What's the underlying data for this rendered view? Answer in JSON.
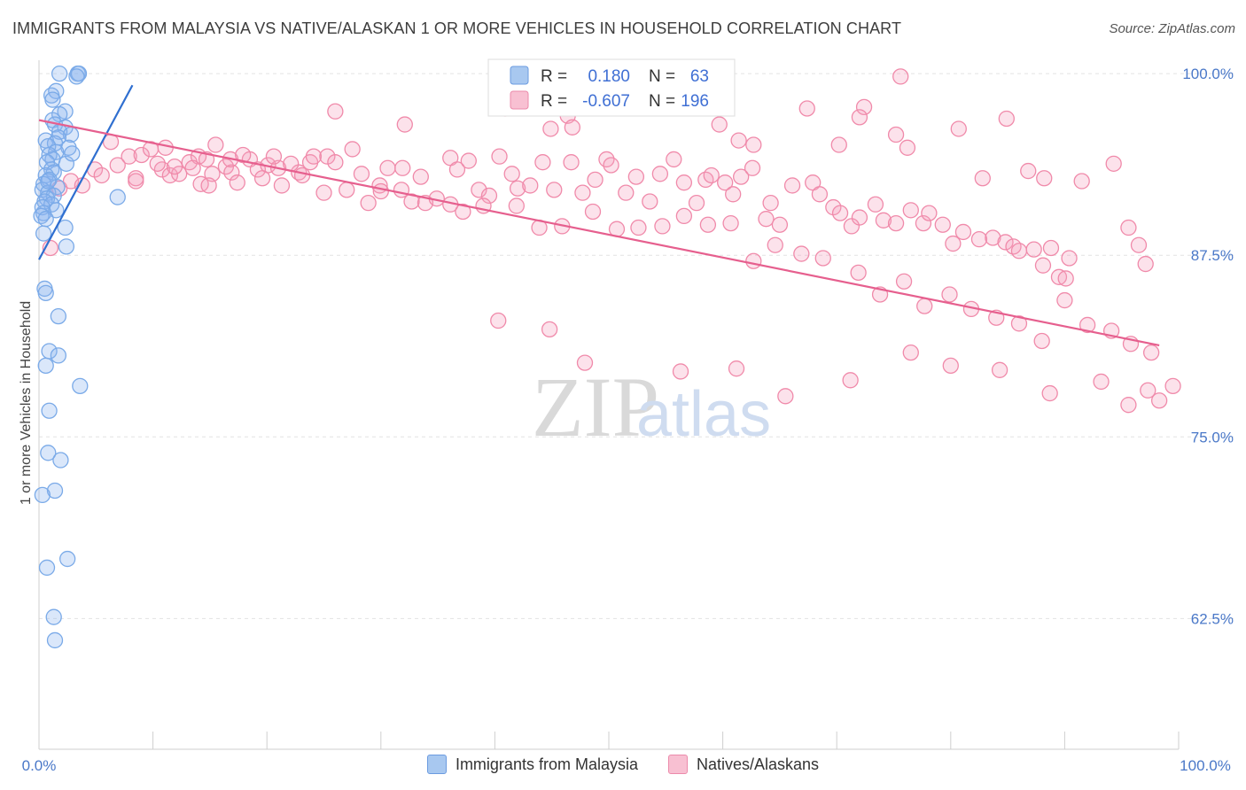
{
  "title": "IMMIGRANTS FROM MALAYSIA VS NATIVE/ALASKAN 1 OR MORE VEHICLES IN HOUSEHOLD CORRELATION CHART",
  "source": "Source: ZipAtlas.com",
  "watermark": {
    "zip": "ZIP",
    "atlas": "atlas"
  },
  "chart_data": {
    "type": "scatter",
    "title": "IMMIGRANTS FROM MALAYSIA VS NATIVE/ALASKAN 1 OR MORE VEHICLES IN HOUSEHOLD CORRELATION CHART",
    "xlabel": "",
    "ylabel": "1 or more Vehicles in Household",
    "xlim": [
      0,
      100
    ],
    "ylim": [
      53.5,
      100.8
    ],
    "x_tick_labels": [
      "0.0%",
      "100.0%"
    ],
    "y_ticks": [
      62.5,
      75.0,
      87.5,
      100.0
    ],
    "y_tick_labels": [
      "62.5%",
      "75.0%",
      "87.5%",
      "100.0%"
    ],
    "grid": true,
    "legend": {
      "position": "top-center",
      "entries": [
        {
          "r_label": "R =",
          "r_value": "0.180",
          "n_label": "N =",
          "n_value": "63"
        },
        {
          "r_label": "R =",
          "r_value": "-0.607",
          "n_label": "N =",
          "n_value": "196"
        }
      ]
    },
    "series": [
      {
        "name": "Immigrants from Malaysia",
        "color": "#7aaae8",
        "trend": {
          "x": [
            0,
            8.2
          ],
          "y": [
            87.2,
            99.2
          ],
          "color": "#2f6fd0"
        },
        "points": [
          [
            1.8,
            100
          ],
          [
            3.4,
            100
          ],
          [
            3.5,
            100
          ],
          [
            3.3,
            99.8
          ],
          [
            1.5,
            98.8
          ],
          [
            1.1,
            98.5
          ],
          [
            1.2,
            98.2
          ],
          [
            2.3,
            97.4
          ],
          [
            1.8,
            97.2
          ],
          [
            1.2,
            96.8
          ],
          [
            1.4,
            96.5
          ],
          [
            2.3,
            96.3
          ],
          [
            1.8,
            96
          ],
          [
            2.8,
            95.8
          ],
          [
            1.7,
            95.6
          ],
          [
            0.6,
            95.4
          ],
          [
            1.4,
            95.2
          ],
          [
            0.8,
            95
          ],
          [
            2.6,
            94.9
          ],
          [
            1.5,
            94.6
          ],
          [
            0.9,
            94.4
          ],
          [
            1.2,
            94.1
          ],
          [
            0.7,
            93.9
          ],
          [
            2.4,
            93.8
          ],
          [
            1.1,
            93.4
          ],
          [
            1.3,
            93.2
          ],
          [
            0.6,
            93
          ],
          [
            0.9,
            92.7
          ],
          [
            0.4,
            92.4
          ],
          [
            1.6,
            92.2
          ],
          [
            0.3,
            92
          ],
          [
            0.8,
            91.8
          ],
          [
            1.3,
            91.6
          ],
          [
            0.7,
            91.4
          ],
          [
            0.5,
            91.2
          ],
          [
            6.9,
            91.5
          ],
          [
            1.1,
            91.0
          ],
          [
            0.3,
            90.8
          ],
          [
            1.5,
            90.6
          ],
          [
            0.4,
            90.4
          ],
          [
            0.2,
            90.2
          ],
          [
            0.6,
            90
          ],
          [
            2.3,
            89.4
          ],
          [
            0.4,
            89
          ],
          [
            2.4,
            88.1
          ],
          [
            0.5,
            85.2
          ],
          [
            0.6,
            84.9
          ],
          [
            1.7,
            83.3
          ],
          [
            0.9,
            80.9
          ],
          [
            1.7,
            80.6
          ],
          [
            0.6,
            79.9
          ],
          [
            3.6,
            78.5
          ],
          [
            0.9,
            76.8
          ],
          [
            0.8,
            73.9
          ],
          [
            1.9,
            73.4
          ],
          [
            1.4,
            71.3
          ],
          [
            0.3,
            71
          ],
          [
            2.5,
            66.6
          ],
          [
            0.7,
            66
          ],
          [
            1.3,
            62.6
          ],
          [
            1.4,
            61
          ],
          [
            0.8,
            92.6
          ],
          [
            2.9,
            94.5
          ]
        ]
      },
      {
        "name": "Natives/Alaskans",
        "color": "#f08aaa",
        "trend": {
          "x": [
            0,
            98.3
          ],
          "y": [
            96.8,
            81.3
          ],
          "color": "#e65f8e"
        },
        "points": [
          [
            1.0,
            88.0
          ],
          [
            1.8,
            92.1
          ],
          [
            2.8,
            92.6
          ],
          [
            3.8,
            92.3
          ],
          [
            4.9,
            93.4
          ],
          [
            5.5,
            93.0
          ],
          [
            6.3,
            95.3
          ],
          [
            6.9,
            93.7
          ],
          [
            7.9,
            94.3
          ],
          [
            8.5,
            92.8
          ],
          [
            9.0,
            94.4
          ],
          [
            9.8,
            94.8
          ],
          [
            11.1,
            94.9
          ],
          [
            10.8,
            93.4
          ],
          [
            11.5,
            93.0
          ],
          [
            12.3,
            93.1
          ],
          [
            13.2,
            93.9
          ],
          [
            14.0,
            94.3
          ],
          [
            14.7,
            94.1
          ],
          [
            15.5,
            95.1
          ],
          [
            14.2,
            92.4
          ],
          [
            15.2,
            93.1
          ],
          [
            16.4,
            93.6
          ],
          [
            16.9,
            93.2
          ],
          [
            17.4,
            92.5
          ],
          [
            18.5,
            94.1
          ],
          [
            19.2,
            93.4
          ],
          [
            20.1,
            93.7
          ],
          [
            21.0,
            93.5
          ],
          [
            21.3,
            92.3
          ],
          [
            22.8,
            93.2
          ],
          [
            23.8,
            93.9
          ],
          [
            24.1,
            94.3
          ],
          [
            25.3,
            94.3
          ],
          [
            26.0,
            93.9
          ],
          [
            27.5,
            94.8
          ],
          [
            28.3,
            93.1
          ],
          [
            29.9,
            92.3
          ],
          [
            30.6,
            93.5
          ],
          [
            31.9,
            93.5
          ],
          [
            32.7,
            91.2
          ],
          [
            33.9,
            91.1
          ],
          [
            36.1,
            94.2
          ],
          [
            36.7,
            93.4
          ],
          [
            37.7,
            94.0
          ],
          [
            36.1,
            91.0
          ],
          [
            38.6,
            92.0
          ],
          [
            39.5,
            91.6
          ],
          [
            40.4,
            94.3
          ],
          [
            41.5,
            93.1
          ],
          [
            42.0,
            92.1
          ],
          [
            43.1,
            92.3
          ],
          [
            44.2,
            93.9
          ],
          [
            45.2,
            92.0
          ],
          [
            46.7,
            93.9
          ],
          [
            47.7,
            91.8
          ],
          [
            48.8,
            92.7
          ],
          [
            49.8,
            94.1
          ],
          [
            50.2,
            93.7
          ],
          [
            51.5,
            91.8
          ],
          [
            52.4,
            92.9
          ],
          [
            53.6,
            91.2
          ],
          [
            54.5,
            93.1
          ],
          [
            55.7,
            94.1
          ],
          [
            56.6,
            92.5
          ],
          [
            57.7,
            91.1
          ],
          [
            58.5,
            92.7
          ],
          [
            59.0,
            93.0
          ],
          [
            60.2,
            92.5
          ],
          [
            60.9,
            91.7
          ],
          [
            61.6,
            92.9
          ],
          [
            62.6,
            93.5
          ],
          [
            63.8,
            90.0
          ],
          [
            64.2,
            91.1
          ],
          [
            65.0,
            89.6
          ],
          [
            66.1,
            92.3
          ],
          [
            67.9,
            92.5
          ],
          [
            68.5,
            91.7
          ],
          [
            69.7,
            90.8
          ],
          [
            70.3,
            90.4
          ],
          [
            71.3,
            89.5
          ],
          [
            72.0,
            90.1
          ],
          [
            73.4,
            91.0
          ],
          [
            74.1,
            89.9
          ],
          [
            75.2,
            89.7
          ],
          [
            76.5,
            90.6
          ],
          [
            77.6,
            89.7
          ],
          [
            78.1,
            90.4
          ],
          [
            79.3,
            89.6
          ],
          [
            80.2,
            88.3
          ],
          [
            81.1,
            89.1
          ],
          [
            82.5,
            88.6
          ],
          [
            83.7,
            88.7
          ],
          [
            84.8,
            88.4
          ],
          [
            85.5,
            88.1
          ],
          [
            86.0,
            87.8
          ],
          [
            87.3,
            87.9
          ],
          [
            88.1,
            86.8
          ],
          [
            89.5,
            86.0
          ],
          [
            90.1,
            85.9
          ],
          [
            26.0,
            97.4
          ],
          [
            32.1,
            96.5
          ],
          [
            40.9,
            97.6
          ],
          [
            44.9,
            96.2
          ],
          [
            46.4,
            97.1
          ],
          [
            46.8,
            96.3
          ],
          [
            54.5,
            97.7
          ],
          [
            59.7,
            96.5
          ],
          [
            58.7,
            98.5
          ],
          [
            61.4,
            95.4
          ],
          [
            62.7,
            95.1
          ],
          [
            67.4,
            97.6
          ],
          [
            70.2,
            95.1
          ],
          [
            72.4,
            97.7
          ],
          [
            72.0,
            97.0
          ],
          [
            75.6,
            99.8
          ],
          [
            75.2,
            95.8
          ],
          [
            76.2,
            94.9
          ],
          [
            80.7,
            96.2
          ],
          [
            82.8,
            92.8
          ],
          [
            84.9,
            96.9
          ],
          [
            86.8,
            93.3
          ],
          [
            88.2,
            92.8
          ],
          [
            88.8,
            88.0
          ],
          [
            90.4,
            87.3
          ],
          [
            91.5,
            92.6
          ],
          [
            94.3,
            93.8
          ],
          [
            95.6,
            89.4
          ],
          [
            96.5,
            88.2
          ],
          [
            97.1,
            86.9
          ],
          [
            8.5,
            92.6
          ],
          [
            10.4,
            93.8
          ],
          [
            11.9,
            93.6
          ],
          [
            13.5,
            93.5
          ],
          [
            14.9,
            92.3
          ],
          [
            16.8,
            94.1
          ],
          [
            17.9,
            94.4
          ],
          [
            19.6,
            92.8
          ],
          [
            20.6,
            94.3
          ],
          [
            22.1,
            93.8
          ],
          [
            23.1,
            93.0
          ],
          [
            25.0,
            91.8
          ],
          [
            27.0,
            92.0
          ],
          [
            28.9,
            91.1
          ],
          [
            30.0,
            91.9
          ],
          [
            31.8,
            92.0
          ],
          [
            33.5,
            92.9
          ],
          [
            34.9,
            91.4
          ],
          [
            37.2,
            90.5
          ],
          [
            39.0,
            90.9
          ],
          [
            41.9,
            90.9
          ],
          [
            43.9,
            89.4
          ],
          [
            45.9,
            89.5
          ],
          [
            48.6,
            90.5
          ],
          [
            50.7,
            89.3
          ],
          [
            52.6,
            89.4
          ],
          [
            54.7,
            89.5
          ],
          [
            56.6,
            90.2
          ],
          [
            58.7,
            89.6
          ],
          [
            60.7,
            89.7
          ],
          [
            62.7,
            87.1
          ],
          [
            64.6,
            88.2
          ],
          [
            66.9,
            87.6
          ],
          [
            68.8,
            87.3
          ],
          [
            71.9,
            86.3
          ],
          [
            73.8,
            84.8
          ],
          [
            75.9,
            85.7
          ],
          [
            77.7,
            84.0
          ],
          [
            79.9,
            84.8
          ],
          [
            81.8,
            83.8
          ],
          [
            84.0,
            83.2
          ],
          [
            86.0,
            82.8
          ],
          [
            88.0,
            81.6
          ],
          [
            90.0,
            84.4
          ],
          [
            92.0,
            82.7
          ],
          [
            94.1,
            82.3
          ],
          [
            95.8,
            81.4
          ],
          [
            97.6,
            80.8
          ],
          [
            40.3,
            83.0
          ],
          [
            44.8,
            82.4
          ],
          [
            47.9,
            80.1
          ],
          [
            56.3,
            79.5
          ],
          [
            61.2,
            79.7
          ],
          [
            65.5,
            77.8
          ],
          [
            71.2,
            78.9
          ],
          [
            76.5,
            80.8
          ],
          [
            80.0,
            79.9
          ],
          [
            84.3,
            79.6
          ],
          [
            88.7,
            78.0
          ],
          [
            93.2,
            78.8
          ],
          [
            95.6,
            77.2
          ],
          [
            97.3,
            78.2
          ],
          [
            98.3,
            77.5
          ],
          [
            99.5,
            78.5
          ]
        ]
      }
    ]
  },
  "bottom_legend": [
    {
      "label": "Immigrants from Malaysia",
      "color": "#a8c8f0",
      "border": "#6b9be0"
    },
    {
      "label": "Natives/Alaskans",
      "color": "#f8c0d2",
      "border": "#ec8aab"
    }
  ]
}
